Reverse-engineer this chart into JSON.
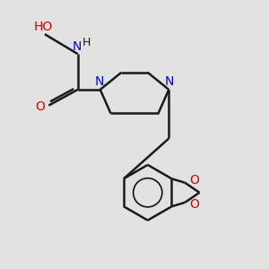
{
  "bg_color": "#e2e2e2",
  "bond_color": "#1a1a1a",
  "N_color": "#0000ee",
  "O_color": "#dd0000",
  "text_color": "#1a1a1a",
  "line_width": 1.8,
  "font_size": 10,
  "small_font_size": 9,
  "xlim": [
    0,
    10
  ],
  "ylim": [
    0,
    10
  ]
}
